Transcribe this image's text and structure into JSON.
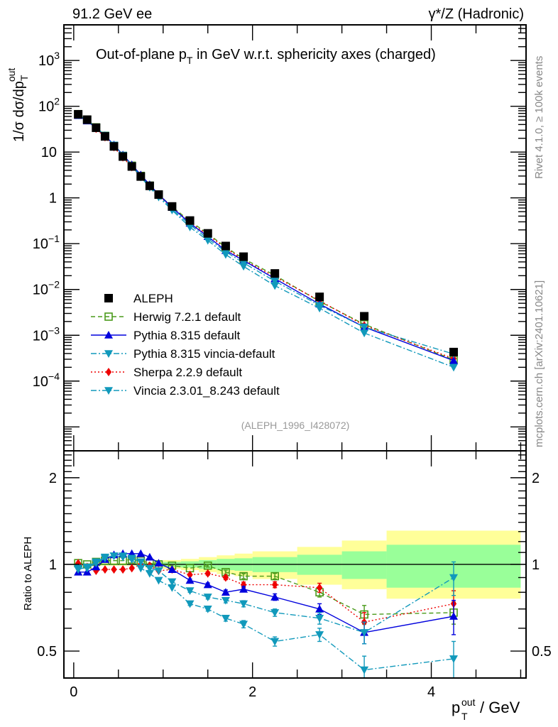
{
  "header": {
    "left": "91.2 GeV ee",
    "right": "γ*/Z (Hadronic)"
  },
  "side_labels": {
    "rivet": "Rivet 4.1.0, ≥ 100k events",
    "mcplots": "mcplots.cern.ch [arXiv:2401.10621]"
  },
  "chart_data": [
    {
      "type": "line",
      "panel": "main",
      "title": "Out-of-plane p_T in GeV w.r.t. sphericity axes (charged)",
      "ylabel": "1/σ  dσ/dp_T^out",
      "yscale": "log",
      "ylim": [
        3e-06,
        6000
      ],
      "xlim": [
        -0.11,
        5.06
      ],
      "yticks": [
        {
          "value": 1000,
          "label": "10",
          "sup": "3"
        },
        {
          "value": 100,
          "label": "10",
          "sup": "2"
        },
        {
          "value": 10,
          "label": "10",
          "sup": ""
        },
        {
          "value": 1,
          "label": "1",
          "sup": ""
        },
        {
          "value": 0.1,
          "label": "10",
          "sup": "−1"
        },
        {
          "value": 0.01,
          "label": "10",
          "sup": "−2"
        },
        {
          "value": 0.001,
          "label": "10",
          "sup": "−3"
        },
        {
          "value": 0.0001,
          "label": "10",
          "sup": "−4"
        }
      ],
      "reference_label": "(ALEPH_1996_I428072)",
      "legend_position": "bottom-left",
      "x": [
        0.05,
        0.15,
        0.25,
        0.35,
        0.45,
        0.55,
        0.65,
        0.75,
        0.85,
        0.95,
        1.1,
        1.3,
        1.5,
        1.7,
        1.9,
        2.25,
        2.75,
        3.25,
        4.25
      ],
      "series": [
        {
          "name": "ALEPH",
          "color": "#000000",
          "marker": "square",
          "line": "none",
          "values": [
            66.8,
            51,
            34,
            22,
            13.3,
            8.0,
            4.85,
            2.93,
            1.83,
            1.18,
            0.65,
            0.32,
            0.168,
            0.089,
            0.052,
            0.0224,
            0.0069,
            0.0026,
            0.00043
          ]
        },
        {
          "name": "Herwig 7.2.1 default",
          "color": "#4a9a1a",
          "marker": "open-square",
          "line": "dashed",
          "values": [
            67.5,
            51,
            34.7,
            22.7,
            13.7,
            8.24,
            5.04,
            3.02,
            1.85,
            1.18,
            0.64,
            0.31,
            0.166,
            0.084,
            0.047,
            0.0204,
            0.0055,
            0.00174,
            0.00029
          ]
        },
        {
          "name": "Pythia 8.315 default",
          "color": "#0000dd",
          "marker": "triangle-up",
          "line": "solid",
          "values": [
            62.8,
            47.9,
            33.3,
            22.9,
            14.4,
            8.7,
            5.29,
            3.19,
            1.94,
            1.19,
            0.62,
            0.28,
            0.143,
            0.071,
            0.043,
            0.0172,
            0.0048,
            0.00151,
            0.00028
          ]
        },
        {
          "name": "Pythia 8.315 vincia-default",
          "color": "#1199bb",
          "marker": "triangle-down",
          "line": "dashdot",
          "values": [
            64.8,
            49.5,
            34.3,
            23.1,
            14.2,
            8.48,
            5.09,
            2.99,
            1.78,
            1.12,
            0.57,
            0.26,
            0.129,
            0.067,
            0.038,
            0.0152,
            0.0045,
            0.00151,
            0.00039
          ]
        },
        {
          "name": "Sherpa 2.2.9 default",
          "color": "#ee0000",
          "marker": "diamond",
          "line": "dotted",
          "values": [
            67.5,
            50,
            32.3,
            21.1,
            12.8,
            7.68,
            4.7,
            2.93,
            1.81,
            1.12,
            0.62,
            0.29,
            0.156,
            0.08,
            0.044,
            0.019,
            0.0057,
            0.00164,
            0.00031
          ]
        },
        {
          "name": "Vincia 2.3.01_8.243 default",
          "color": "#1199bb",
          "marker": "triangle-down",
          "line": "dashdot",
          "values": [
            64.1,
            50,
            34.7,
            23.3,
            14.2,
            8.56,
            5.04,
            2.84,
            1.7,
            1.04,
            0.54,
            0.23,
            0.118,
            0.058,
            0.032,
            0.0121,
            0.0039,
            0.00112,
            0.0002
          ]
        }
      ]
    },
    {
      "type": "line",
      "panel": "ratio",
      "ylabel": "Ratio to ALEPH",
      "xlabel": "p_T^out / GeV",
      "yscale": "log",
      "ylim": [
        0.403,
        2.48
      ],
      "xlim": [
        -0.11,
        5.06
      ],
      "yticks": [
        {
          "value": 2,
          "label": "2"
        },
        {
          "value": 1,
          "label": "1"
        },
        {
          "value": 0.5,
          "label": "0.5"
        }
      ],
      "xticks": [
        {
          "value": 0,
          "label": "0"
        },
        {
          "value": 2,
          "label": "2"
        },
        {
          "value": 4,
          "label": "4"
        }
      ],
      "bands": {
        "bin_edges": [
          0.0,
          0.1,
          0.2,
          0.3,
          0.4,
          0.5,
          0.6,
          0.7,
          0.8,
          0.9,
          1.0,
          1.2,
          1.4,
          1.6,
          1.8,
          2.0,
          2.5,
          3.0,
          3.5,
          5.0
        ],
        "stat_color": "#99ff99",
        "total_color": "#ffff99",
        "stat_lo": [
          0.995,
          0.995,
          0.995,
          0.995,
          0.995,
          0.995,
          0.995,
          0.995,
          0.99,
          0.985,
          0.98,
          0.975,
          0.965,
          0.955,
          0.95,
          0.94,
          0.92,
          0.89,
          0.83
        ],
        "stat_hi": [
          1.005,
          1.005,
          1.005,
          1.005,
          1.005,
          1.005,
          1.005,
          1.005,
          1.01,
          1.015,
          1.02,
          1.025,
          1.035,
          1.045,
          1.05,
          1.06,
          1.08,
          1.11,
          1.17
        ],
        "total_lo": [
          0.99,
          0.99,
          0.99,
          0.99,
          0.99,
          0.99,
          0.99,
          0.99,
          0.985,
          0.975,
          0.965,
          0.955,
          0.94,
          0.925,
          0.91,
          0.89,
          0.85,
          0.82,
          0.76
        ],
        "total_hi": [
          1.01,
          1.01,
          1.01,
          1.01,
          1.01,
          1.01,
          1.01,
          1.01,
          1.015,
          1.025,
          1.035,
          1.045,
          1.06,
          1.075,
          1.09,
          1.11,
          1.15,
          1.21,
          1.31
        ]
      },
      "x": [
        0.05,
        0.15,
        0.25,
        0.35,
        0.45,
        0.55,
        0.65,
        0.75,
        0.85,
        0.95,
        1.1,
        1.3,
        1.5,
        1.7,
        1.9,
        2.25,
        2.75,
        3.25,
        4.25
      ],
      "series": [
        {
          "name": "Herwig 7.2.1 default",
          "color": "#4a9a1a",
          "marker": "open-square",
          "line": "dashed",
          "values": [
            1.01,
            1.0,
            1.02,
            1.03,
            1.03,
            1.03,
            1.04,
            1.03,
            1.01,
            1.0,
            0.99,
            0.97,
            0.99,
            0.94,
            0.91,
            0.91,
            0.8,
            0.67,
            0.68
          ],
          "errors": [
            0.005,
            0.005,
            0.005,
            0.005,
            0.005,
            0.005,
            0.005,
            0.005,
            0.006,
            0.007,
            0.008,
            0.01,
            0.012,
            0.015,
            0.018,
            0.02,
            0.03,
            0.05,
            0.06
          ]
        },
        {
          "name": "Pythia 8.315 default",
          "color": "#0000dd",
          "marker": "triangle-up",
          "line": "solid",
          "values": [
            0.94,
            0.94,
            0.98,
            1.04,
            1.08,
            1.09,
            1.09,
            1.09,
            1.06,
            1.01,
            0.96,
            0.88,
            0.85,
            0.8,
            0.82,
            0.77,
            0.7,
            0.58,
            0.66
          ],
          "errors": [
            0.005,
            0.005,
            0.005,
            0.005,
            0.005,
            0.005,
            0.005,
            0.005,
            0.006,
            0.007,
            0.008,
            0.01,
            0.012,
            0.015,
            0.018,
            0.02,
            0.03,
            0.05,
            0.09
          ]
        },
        {
          "name": "Pythia 8.315 vincia-default",
          "color": "#1199bb",
          "marker": "triangle-down",
          "line": "dashdot",
          "values": [
            0.97,
            0.97,
            1.01,
            1.05,
            1.07,
            1.06,
            1.05,
            1.02,
            0.97,
            0.95,
            0.87,
            0.81,
            0.77,
            0.75,
            0.73,
            0.68,
            0.65,
            0.58,
            0.9
          ],
          "errors": [
            0.005,
            0.005,
            0.005,
            0.005,
            0.005,
            0.005,
            0.005,
            0.005,
            0.006,
            0.007,
            0.008,
            0.01,
            0.012,
            0.015,
            0.018,
            0.02,
            0.03,
            0.05,
            0.12
          ]
        },
        {
          "name": "Sherpa 2.2.9 default",
          "color": "#ee0000",
          "marker": "diamond",
          "line": "dotted",
          "values": [
            1.01,
            0.98,
            0.95,
            0.96,
            0.96,
            0.96,
            0.97,
            1.0,
            0.99,
            0.95,
            0.96,
            0.92,
            0.93,
            0.9,
            0.85,
            0.85,
            0.83,
            0.63,
            0.73
          ],
          "errors": [
            0.005,
            0.005,
            0.005,
            0.005,
            0.005,
            0.005,
            0.005,
            0.005,
            0.006,
            0.007,
            0.008,
            0.01,
            0.012,
            0.015,
            0.018,
            0.02,
            0.03,
            0.05,
            0.08
          ]
        },
        {
          "name": "Vincia 2.3.01_8.243 default",
          "color": "#1199bb",
          "marker": "triangle-down",
          "line": "dashdot",
          "values": [
            0.96,
            0.98,
            1.02,
            1.06,
            1.07,
            1.07,
            1.04,
            0.97,
            0.93,
            0.88,
            0.83,
            0.73,
            0.7,
            0.65,
            0.62,
            0.54,
            0.57,
            0.43,
            0.47
          ],
          "errors": [
            0.005,
            0.005,
            0.005,
            0.005,
            0.005,
            0.005,
            0.005,
            0.005,
            0.006,
            0.007,
            0.008,
            0.01,
            0.012,
            0.015,
            0.018,
            0.02,
            0.03,
            0.05,
            0.07
          ]
        }
      ]
    }
  ]
}
